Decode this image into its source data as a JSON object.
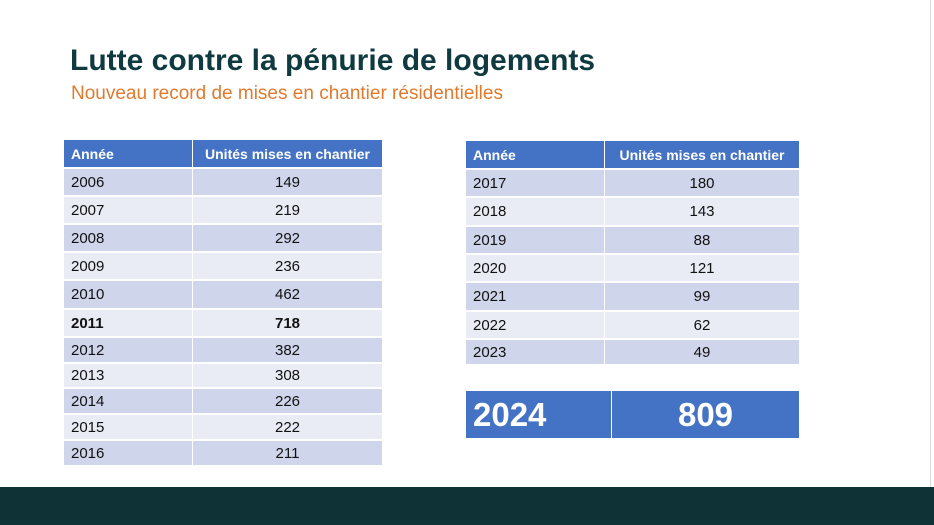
{
  "slide": {
    "title": "Lutte contre la pénurie de logements",
    "subtitle": "Nouveau record de mises en chantier résidentielles",
    "colors": {
      "title": "#0f3a40",
      "subtitle": "#e07a2e",
      "header_fill": "#4472c4",
      "row_dark": "#cfd5ea",
      "row_light": "#e9ebf5",
      "footer": "#0f3237"
    }
  },
  "table_left": {
    "headers": [
      "Année",
      "Unités mises en chantier"
    ],
    "rows": [
      {
        "year": "2006",
        "units": "149"
      },
      {
        "year": "2007",
        "units": "219"
      },
      {
        "year": "2008",
        "units": "292"
      },
      {
        "year": "2009",
        "units": "236"
      },
      {
        "year": "2010",
        "units": "462"
      },
      {
        "year": "2011",
        "units": "718"
      },
      {
        "year": "2012",
        "units": "382"
      },
      {
        "year": "2013",
        "units": "308"
      },
      {
        "year": "2014",
        "units": "226"
      },
      {
        "year": "2015",
        "units": "222"
      },
      {
        "year": "2016",
        "units": "211"
      }
    ]
  },
  "table_right": {
    "headers": [
      "Année",
      "Unités mises en chantier"
    ],
    "rows": [
      {
        "year": "2017",
        "units": "180"
      },
      {
        "year": "2018",
        "units": "143"
      },
      {
        "year": "2019",
        "units": "88"
      },
      {
        "year": "2020",
        "units": "121"
      },
      {
        "year": "2021",
        "units": "99"
      },
      {
        "year": "2022",
        "units": "62"
      },
      {
        "year": "2023",
        "units": "49"
      }
    ]
  },
  "highlight": {
    "year": "2024",
    "units": "809"
  }
}
